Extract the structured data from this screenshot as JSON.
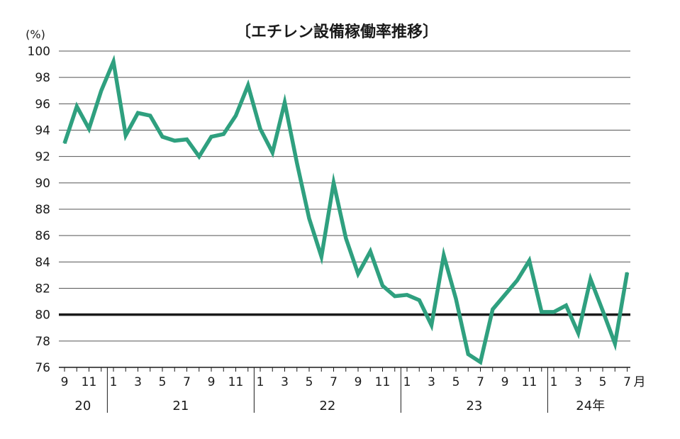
{
  "chart_data": {
    "type": "line",
    "title": "〔エチレン設備稼働率推移〕",
    "y_unit_label": "(%)",
    "x_unit_suffix": "月",
    "ylim": [
      76,
      100
    ],
    "yticks": [
      76,
      78,
      80,
      82,
      84,
      86,
      88,
      90,
      92,
      94,
      96,
      98,
      100
    ],
    "reference_line": 80,
    "grid": true,
    "months": [
      9,
      10,
      11,
      12,
      1,
      2,
      3,
      4,
      5,
      6,
      7,
      8,
      9,
      10,
      11,
      12,
      1,
      2,
      3,
      4,
      5,
      6,
      7,
      8,
      9,
      10,
      11,
      12,
      1,
      2,
      3,
      4,
      5,
      6,
      7,
      8,
      9,
      10,
      11,
      12,
      1,
      2,
      3,
      4,
      5,
      6,
      7
    ],
    "month_labels": [
      {
        "i": 0,
        "label": "9"
      },
      {
        "i": 2,
        "label": "11"
      },
      {
        "i": 4,
        "label": "1"
      },
      {
        "i": 6,
        "label": "3"
      },
      {
        "i": 8,
        "label": "5"
      },
      {
        "i": 10,
        "label": "7"
      },
      {
        "i": 12,
        "label": "9"
      },
      {
        "i": 14,
        "label": "11"
      },
      {
        "i": 16,
        "label": "1"
      },
      {
        "i": 18,
        "label": "3"
      },
      {
        "i": 20,
        "label": "5"
      },
      {
        "i": 22,
        "label": "7"
      },
      {
        "i": 24,
        "label": "9"
      },
      {
        "i": 26,
        "label": "11"
      },
      {
        "i": 28,
        "label": "1"
      },
      {
        "i": 30,
        "label": "3"
      },
      {
        "i": 32,
        "label": "5"
      },
      {
        "i": 34,
        "label": "7"
      },
      {
        "i": 36,
        "label": "9"
      },
      {
        "i": 38,
        "label": "11"
      },
      {
        "i": 40,
        "label": "1"
      },
      {
        "i": 42,
        "label": "3"
      },
      {
        "i": 44,
        "label": "5"
      },
      {
        "i": 46,
        "label": "7"
      }
    ],
    "years": [
      {
        "label": "20",
        "start": 0,
        "end": 3
      },
      {
        "label": "21",
        "start": 4,
        "end": 15
      },
      {
        "label": "22",
        "start": 16,
        "end": 27
      },
      {
        "label": "23",
        "start": 28,
        "end": 39
      },
      {
        "label": "24年",
        "start": 40,
        "end": 46
      }
    ],
    "series": [
      {
        "values": [
          93.0,
          95.8,
          94.1,
          97.0,
          99.2,
          93.6,
          95.3,
          95.1,
          93.5,
          93.2,
          93.3,
          92.0,
          93.5,
          93.7,
          95.1,
          97.4,
          94.1,
          92.3,
          96.1,
          91.5,
          87.3,
          84.4,
          90.0,
          85.8,
          83.1,
          84.8,
          82.2,
          81.4,
          81.5,
          81.1,
          79.2,
          84.5,
          81.2,
          77.0,
          76.4,
          80.4,
          81.5,
          82.6,
          84.1,
          80.2,
          80.2,
          80.7,
          78.6,
          82.7,
          80.3,
          77.8,
          83.2
        ]
      }
    ],
    "colors": {
      "line": "#2fa07f",
      "grid": "#555555",
      "reference": "#1a1a1a",
      "text": "#1a1a1a"
    }
  }
}
